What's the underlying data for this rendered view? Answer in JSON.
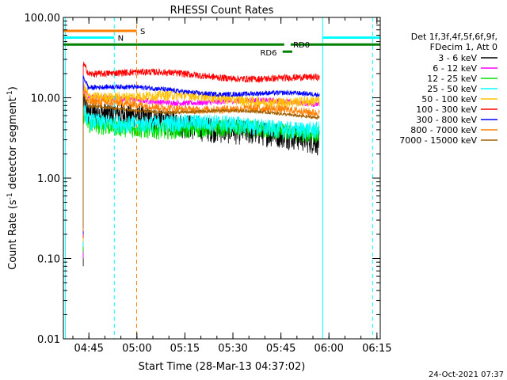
{
  "chart_data": {
    "type": "line",
    "title": "RHESSI Count Rates",
    "xlabel": "Start Time (28-Mar-13 04:37:02)",
    "ylabel_main": "Count Rate (s",
    "ylabel_sup1": "-1",
    "ylabel_mid": " detector segment",
    "ylabel_sup2": "-1",
    "ylabel_end": ")",
    "yscale": "log",
    "ylim": [
      0.01,
      100
    ],
    "xlim_minutes": [
      0,
      99
    ],
    "x_ticks": [
      {
        "label": "04:45",
        "t": 7.97
      },
      {
        "label": "05:00",
        "t": 22.97
      },
      {
        "label": "05:15",
        "t": 37.97
      },
      {
        "label": "05:30",
        "t": 52.97
      },
      {
        "label": "05:45",
        "t": 67.97
      },
      {
        "label": "06:00",
        "t": 82.97
      },
      {
        "label": "06:15",
        "t": 97.97
      }
    ],
    "y_ticks": [
      {
        "label": "100.00",
        "v": 100
      },
      {
        "label": "10.00",
        "v": 10
      },
      {
        "label": "1.00",
        "v": 1
      },
      {
        "label": "0.10",
        "v": 0.1
      },
      {
        "label": "0.01",
        "v": 0.01
      }
    ],
    "legend_header": [
      "Det 1f,3f,4f,5f,6f,9f,",
      "FDecim 1, Att 0"
    ],
    "series": [
      {
        "name": "3 - 6 keV",
        "color": "#000000",
        "start": 6.2,
        "end": 80.0,
        "level": 6.5,
        "end_level": 2.8,
        "noise": 0.35
      },
      {
        "name": "6 - 12 keV",
        "color": "#ff00ff",
        "start": 6.2,
        "end": 80.0,
        "level": 9.6,
        "end_level": 8.5,
        "noise": 0.08
      },
      {
        "name": "12 - 25 keV",
        "color": "#00e000",
        "start": 6.2,
        "end": 80.0,
        "level": 4.5,
        "end_level": 3.8,
        "noise": 0.25
      },
      {
        "name": "25 - 50 keV",
        "color": "#00ffff",
        "start": 6.2,
        "end": 80.0,
        "level": 5.3,
        "end_level": 4.2,
        "noise": 0.25
      },
      {
        "name": "50 - 100 keV",
        "color": "#ffc000",
        "start": 6.2,
        "end": 80.0,
        "level": 11.0,
        "end_level": 9.0,
        "noise": 0.15
      },
      {
        "name": "100 - 300 keV",
        "color": "#ff0000",
        "start": 6.2,
        "end": 80.0,
        "level": 21.0,
        "end_level": 17.0,
        "noise": 0.1
      },
      {
        "name": "300 - 800 keV",
        "color": "#0000ff",
        "start": 6.2,
        "end": 80.0,
        "level": 13.5,
        "end_level": 10.5,
        "noise": 0.07
      },
      {
        "name": "800 - 7000 keV",
        "color": "#ff8000",
        "start": 6.2,
        "end": 80.0,
        "level": 8.5,
        "end_level": 6.5,
        "noise": 0.12
      },
      {
        "name": "7000 - 15000 keV",
        "color": "#a06000",
        "start": 6.2,
        "end": 80.0,
        "level": 7.5,
        "end_level": 6.0,
        "noise": 0.05
      }
    ],
    "vlines": [
      {
        "t": 0.6,
        "color": "#00ffff",
        "dashed": false
      },
      {
        "t": 15.9,
        "color": "#00ffff",
        "dashed": true
      },
      {
        "t": 22.9,
        "color": "#ff8000",
        "dashed": true
      },
      {
        "t": 81.0,
        "color": "#00ffff",
        "dashed": false
      },
      {
        "t": 96.6,
        "color": "#00ffff",
        "dashed": true
      }
    ],
    "flags": [
      {
        "label": "S",
        "color": "#ff8000",
        "y": 68,
        "segments": [
          [
            0,
            22.9
          ]
        ],
        "label_t": 24.0
      },
      {
        "label": "N",
        "color": "#00ffff",
        "y": 56,
        "segments": [
          [
            0,
            15.9
          ],
          [
            81.0,
            99
          ]
        ],
        "label_t": 17.0
      },
      {
        "label": "RD6",
        "color": "#008000",
        "y": 37.5,
        "segments": [
          [
            68.5,
            71.5
          ]
        ],
        "label_t": 61.5
      },
      {
        "label": "RD0",
        "color": "#008000",
        "y": 46,
        "segments": [
          [
            0,
            69
          ],
          [
            71,
            99
          ]
        ],
        "label_t": 71.8
      }
    ],
    "footer": "24-Oct-2021 07:37"
  }
}
